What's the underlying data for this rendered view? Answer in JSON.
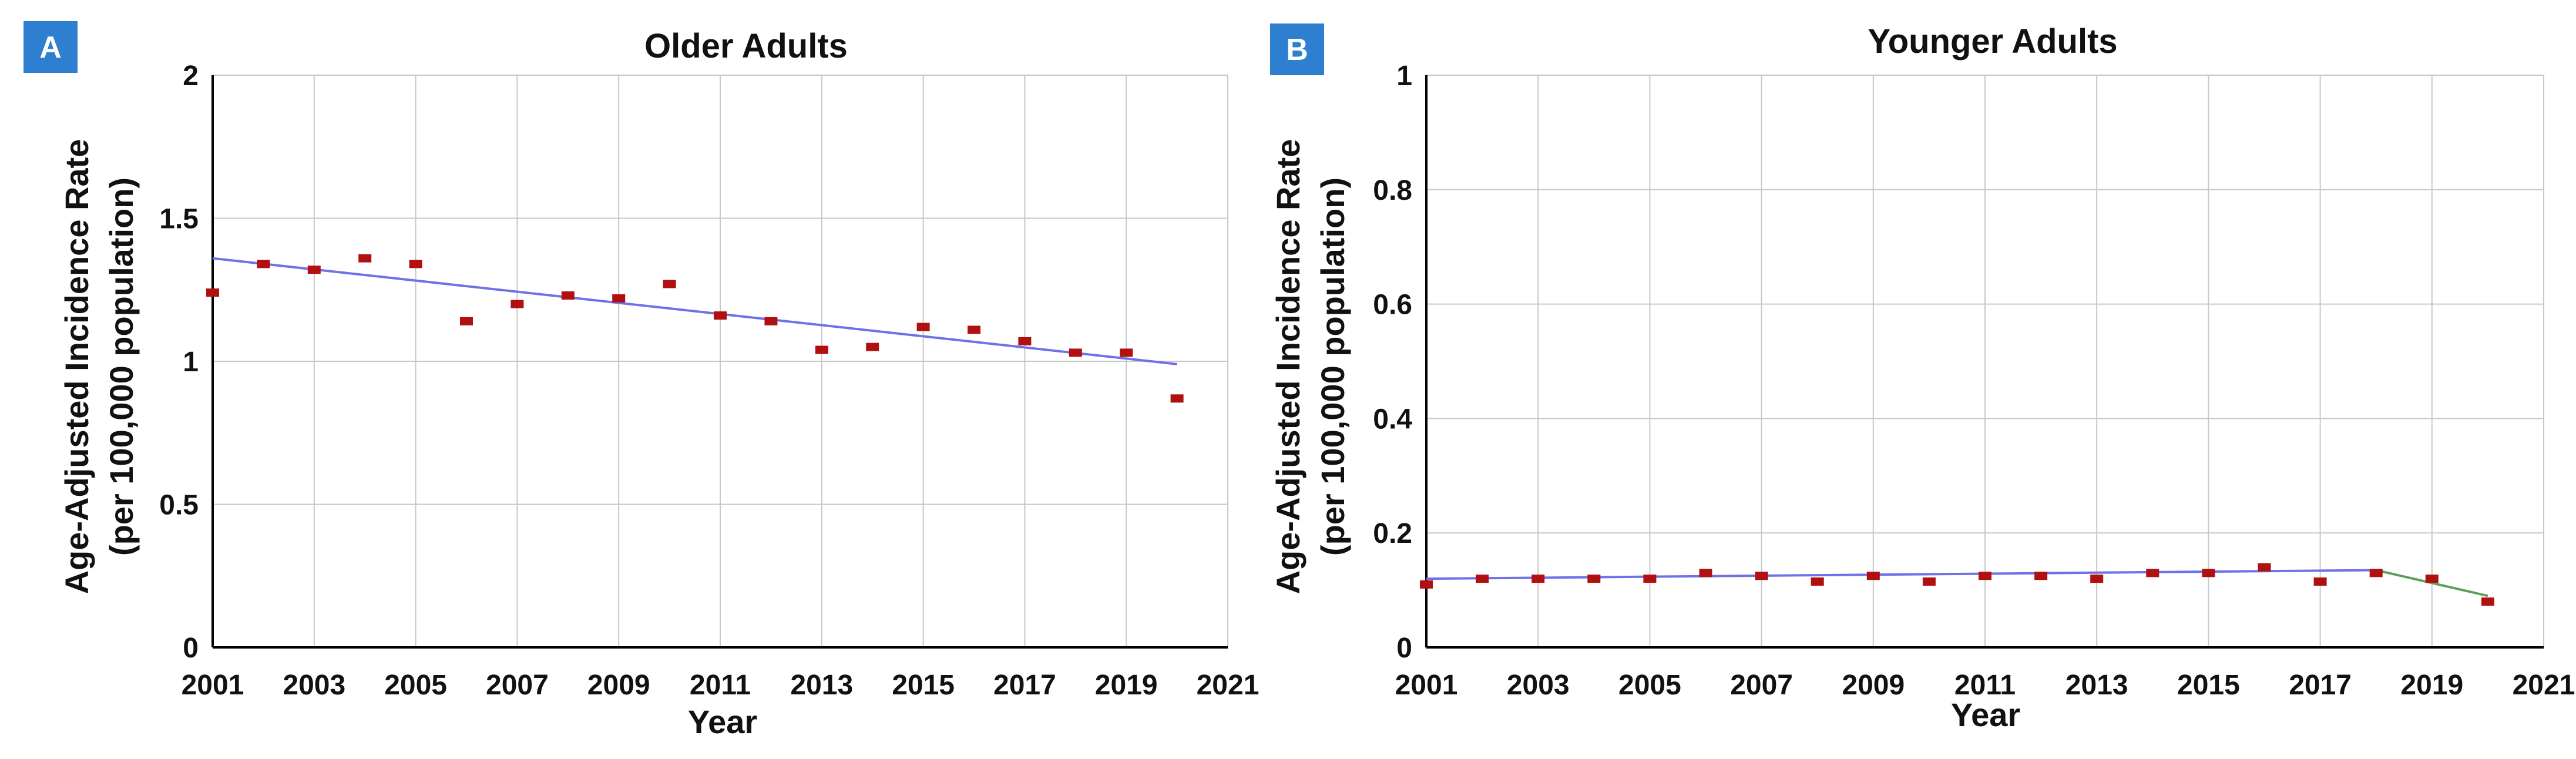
{
  "chart_data": [
    {
      "panel_label": "A",
      "type": "scatter",
      "title": "Older Adults",
      "xlabel": "Year",
      "ylabel_line1": "Age-Adjusted Incidence Rate",
      "ylabel_line2": "(per 100,000 population)",
      "xlim": [
        2001,
        2021
      ],
      "ylim": [
        0,
        2
      ],
      "x_ticks": [
        2001,
        2003,
        2005,
        2007,
        2009,
        2011,
        2013,
        2015,
        2017,
        2019,
        2021
      ],
      "y_ticks": [
        0,
        0.5,
        1,
        1.5,
        2
      ],
      "y_tick_labels": [
        "0",
        "0.5",
        "1",
        "1.5",
        "2"
      ],
      "grid": true,
      "points": {
        "x": [
          2001,
          2002,
          2003,
          2004,
          2005,
          2006,
          2007,
          2008,
          2009,
          2010,
          2011,
          2012,
          2013,
          2014,
          2015,
          2016,
          2017,
          2018,
          2019,
          2020
        ],
        "y": [
          1.24,
          1.34,
          1.32,
          1.36,
          1.34,
          1.14,
          1.2,
          1.23,
          1.22,
          1.27,
          1.16,
          1.14,
          1.04,
          1.05,
          1.12,
          1.11,
          1.07,
          1.03,
          1.03,
          0.87
        ],
        "color": "#b01010"
      },
      "trend_segments": [
        {
          "x": [
            2001,
            2020
          ],
          "y": [
            1.36,
            0.99
          ],
          "color": "#7070e8"
        }
      ]
    },
    {
      "panel_label": "B",
      "type": "scatter",
      "title": "Younger Adults",
      "xlabel": "Year",
      "ylabel_line1": "Age-Adjusted Incidence Rate",
      "ylabel_line2": "(per 100,000 population)",
      "xlim": [
        2001,
        2021
      ],
      "ylim": [
        0,
        1
      ],
      "x_ticks": [
        2001,
        2003,
        2005,
        2007,
        2009,
        2011,
        2013,
        2015,
        2017,
        2019,
        2021
      ],
      "y_ticks": [
        0,
        0.2,
        0.4,
        0.6,
        0.8,
        1
      ],
      "y_tick_labels": [
        "0",
        "0.2",
        "0.4",
        "0.6",
        "0.8",
        "1"
      ],
      "grid": true,
      "points": {
        "x": [
          2001,
          2002,
          2003,
          2004,
          2005,
          2006,
          2007,
          2008,
          2009,
          2010,
          2011,
          2012,
          2013,
          2014,
          2015,
          2016,
          2017,
          2018,
          2019,
          2020
        ],
        "y": [
          0.11,
          0.12,
          0.12,
          0.12,
          0.12,
          0.13,
          0.125,
          0.115,
          0.125,
          0.115,
          0.125,
          0.125,
          0.12,
          0.13,
          0.13,
          0.14,
          0.115,
          0.13,
          0.12,
          0.08
        ],
        "color": "#b01010"
      },
      "trend_segments": [
        {
          "x": [
            2001,
            2018
          ],
          "y": [
            0.12,
            0.135
          ],
          "color": "#7070e8"
        },
        {
          "x": [
            2018,
            2020
          ],
          "y": [
            0.135,
            0.09
          ],
          "color": "#5aa05a"
        }
      ]
    }
  ],
  "colors": {
    "badge": "#2f7fd0",
    "grid": "#c8c8c8",
    "axis": "#000000"
  }
}
